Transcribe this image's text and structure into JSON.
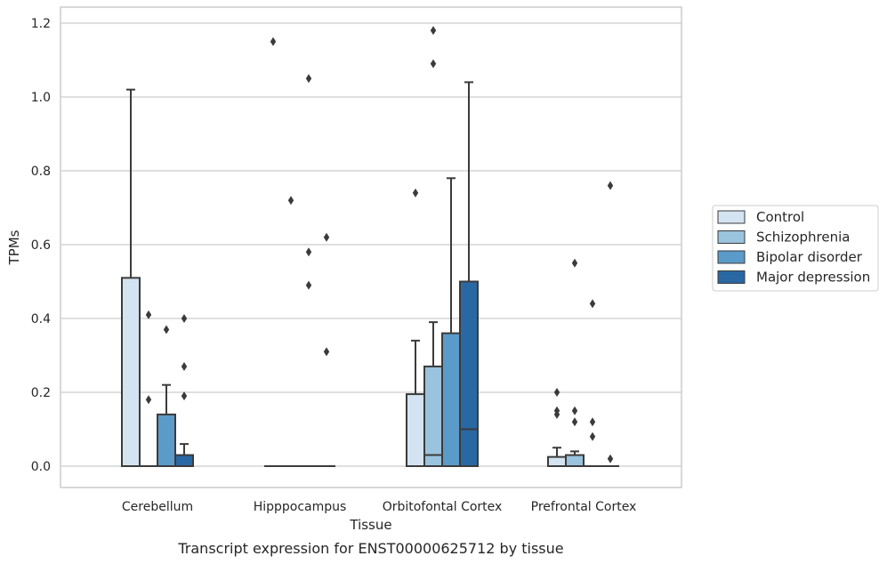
{
  "chart_data": {
    "type": "box",
    "xlabel": "Tissue",
    "ylabel": "TPMs",
    "caption": "Transcript expression for ENST00000625712 by tissue",
    "ylim": [
      -0.055,
      1.24
    ],
    "yticks": [
      0.0,
      0.2,
      0.4,
      0.6,
      0.8,
      1.0,
      1.2
    ],
    "ytick_labels": [
      "0.0",
      "0.2",
      "0.4",
      "0.6",
      "0.8",
      "1.0",
      "1.2"
    ],
    "grid": "horizontal",
    "legend_position": "right",
    "categories": [
      "Cerebellum",
      "Hipppocampus",
      "Orbitofontal Cortex",
      "Prefrontal Cortex"
    ],
    "series": [
      {
        "name": "Control",
        "color": "#d3e3f1",
        "boxes": [
          {
            "category": "Cerebellum",
            "q1": 0.0,
            "median": 0.0,
            "q3": 0.51,
            "whisker_low": 0.0,
            "whisker_high": 1.02,
            "outliers": []
          },
          {
            "category": "Hipppocampus",
            "q1": 0.0,
            "median": 0.0,
            "q3": 0.0,
            "whisker_low": 0.0,
            "whisker_high": 0.0,
            "outliers": [
              1.15
            ]
          },
          {
            "category": "Orbitofontal Cortex",
            "q1": 0.0,
            "median": 0.0,
            "q3": 0.195,
            "whisker_low": 0.0,
            "whisker_high": 0.34,
            "outliers": [
              0.74
            ]
          },
          {
            "category": "Prefrontal Cortex",
            "q1": 0.0,
            "median": 0.0,
            "q3": 0.025,
            "whisker_low": 0.0,
            "whisker_high": 0.05,
            "outliers": [
              0.2,
              0.15,
              0.14
            ]
          }
        ]
      },
      {
        "name": "Schizophrenia",
        "color": "#9ac3dd",
        "boxes": [
          {
            "category": "Cerebellum",
            "q1": 0.0,
            "median": 0.0,
            "q3": 0.0,
            "whisker_low": 0.0,
            "whisker_high": 0.0,
            "outliers": [
              0.41,
              0.18
            ]
          },
          {
            "category": "Hipppocampus",
            "q1": 0.0,
            "median": 0.0,
            "q3": 0.0,
            "whisker_low": 0.0,
            "whisker_high": 0.0,
            "outliers": [
              0.72
            ]
          },
          {
            "category": "Orbitofontal Cortex",
            "q1": 0.0,
            "median": 0.03,
            "q3": 0.27,
            "whisker_low": 0.0,
            "whisker_high": 0.39,
            "outliers": [
              1.18,
              1.09
            ]
          },
          {
            "category": "Prefrontal Cortex",
            "q1": 0.0,
            "median": 0.0,
            "q3": 0.03,
            "whisker_low": 0.0,
            "whisker_high": 0.04,
            "outliers": [
              0.55,
              0.15,
              0.12
            ]
          }
        ]
      },
      {
        "name": "Bipolar disorder",
        "color": "#5b9bc9",
        "boxes": [
          {
            "category": "Cerebellum",
            "q1": 0.0,
            "median": 0.0,
            "q3": 0.14,
            "whisker_low": 0.0,
            "whisker_high": 0.22,
            "outliers": [
              0.37
            ]
          },
          {
            "category": "Hipppocampus",
            "q1": 0.0,
            "median": 0.0,
            "q3": 0.0,
            "whisker_low": 0.0,
            "whisker_high": 0.0,
            "outliers": [
              1.05,
              0.58,
              0.49
            ]
          },
          {
            "category": "Orbitofontal Cortex",
            "q1": 0.0,
            "median": 0.0,
            "q3": 0.36,
            "whisker_low": 0.0,
            "whisker_high": 0.78,
            "outliers": []
          },
          {
            "category": "Prefrontal Cortex",
            "q1": 0.0,
            "median": 0.0,
            "q3": 0.0,
            "whisker_low": 0.0,
            "whisker_high": 0.0,
            "outliers": [
              0.44,
              0.12,
              0.08
            ]
          }
        ]
      },
      {
        "name": "Major depression",
        "color": "#2a68a4",
        "boxes": [
          {
            "category": "Cerebellum",
            "q1": 0.0,
            "median": 0.0,
            "q3": 0.03,
            "whisker_low": 0.0,
            "whisker_high": 0.06,
            "outliers": [
              0.4,
              0.27,
              0.19
            ]
          },
          {
            "category": "Hipppocampus",
            "q1": 0.0,
            "median": 0.0,
            "q3": 0.0,
            "whisker_low": 0.0,
            "whisker_high": 0.0,
            "outliers": [
              0.62,
              0.31
            ]
          },
          {
            "category": "Orbitofontal Cortex",
            "q1": 0.0,
            "median": 0.1,
            "q3": 0.5,
            "whisker_low": 0.0,
            "whisker_high": 1.04,
            "outliers": []
          },
          {
            "category": "Prefrontal Cortex",
            "q1": 0.0,
            "median": 0.0,
            "q3": 0.0,
            "whisker_low": 0.0,
            "whisker_high": 0.0,
            "outliers": [
              0.76,
              0.02
            ]
          }
        ]
      }
    ]
  }
}
